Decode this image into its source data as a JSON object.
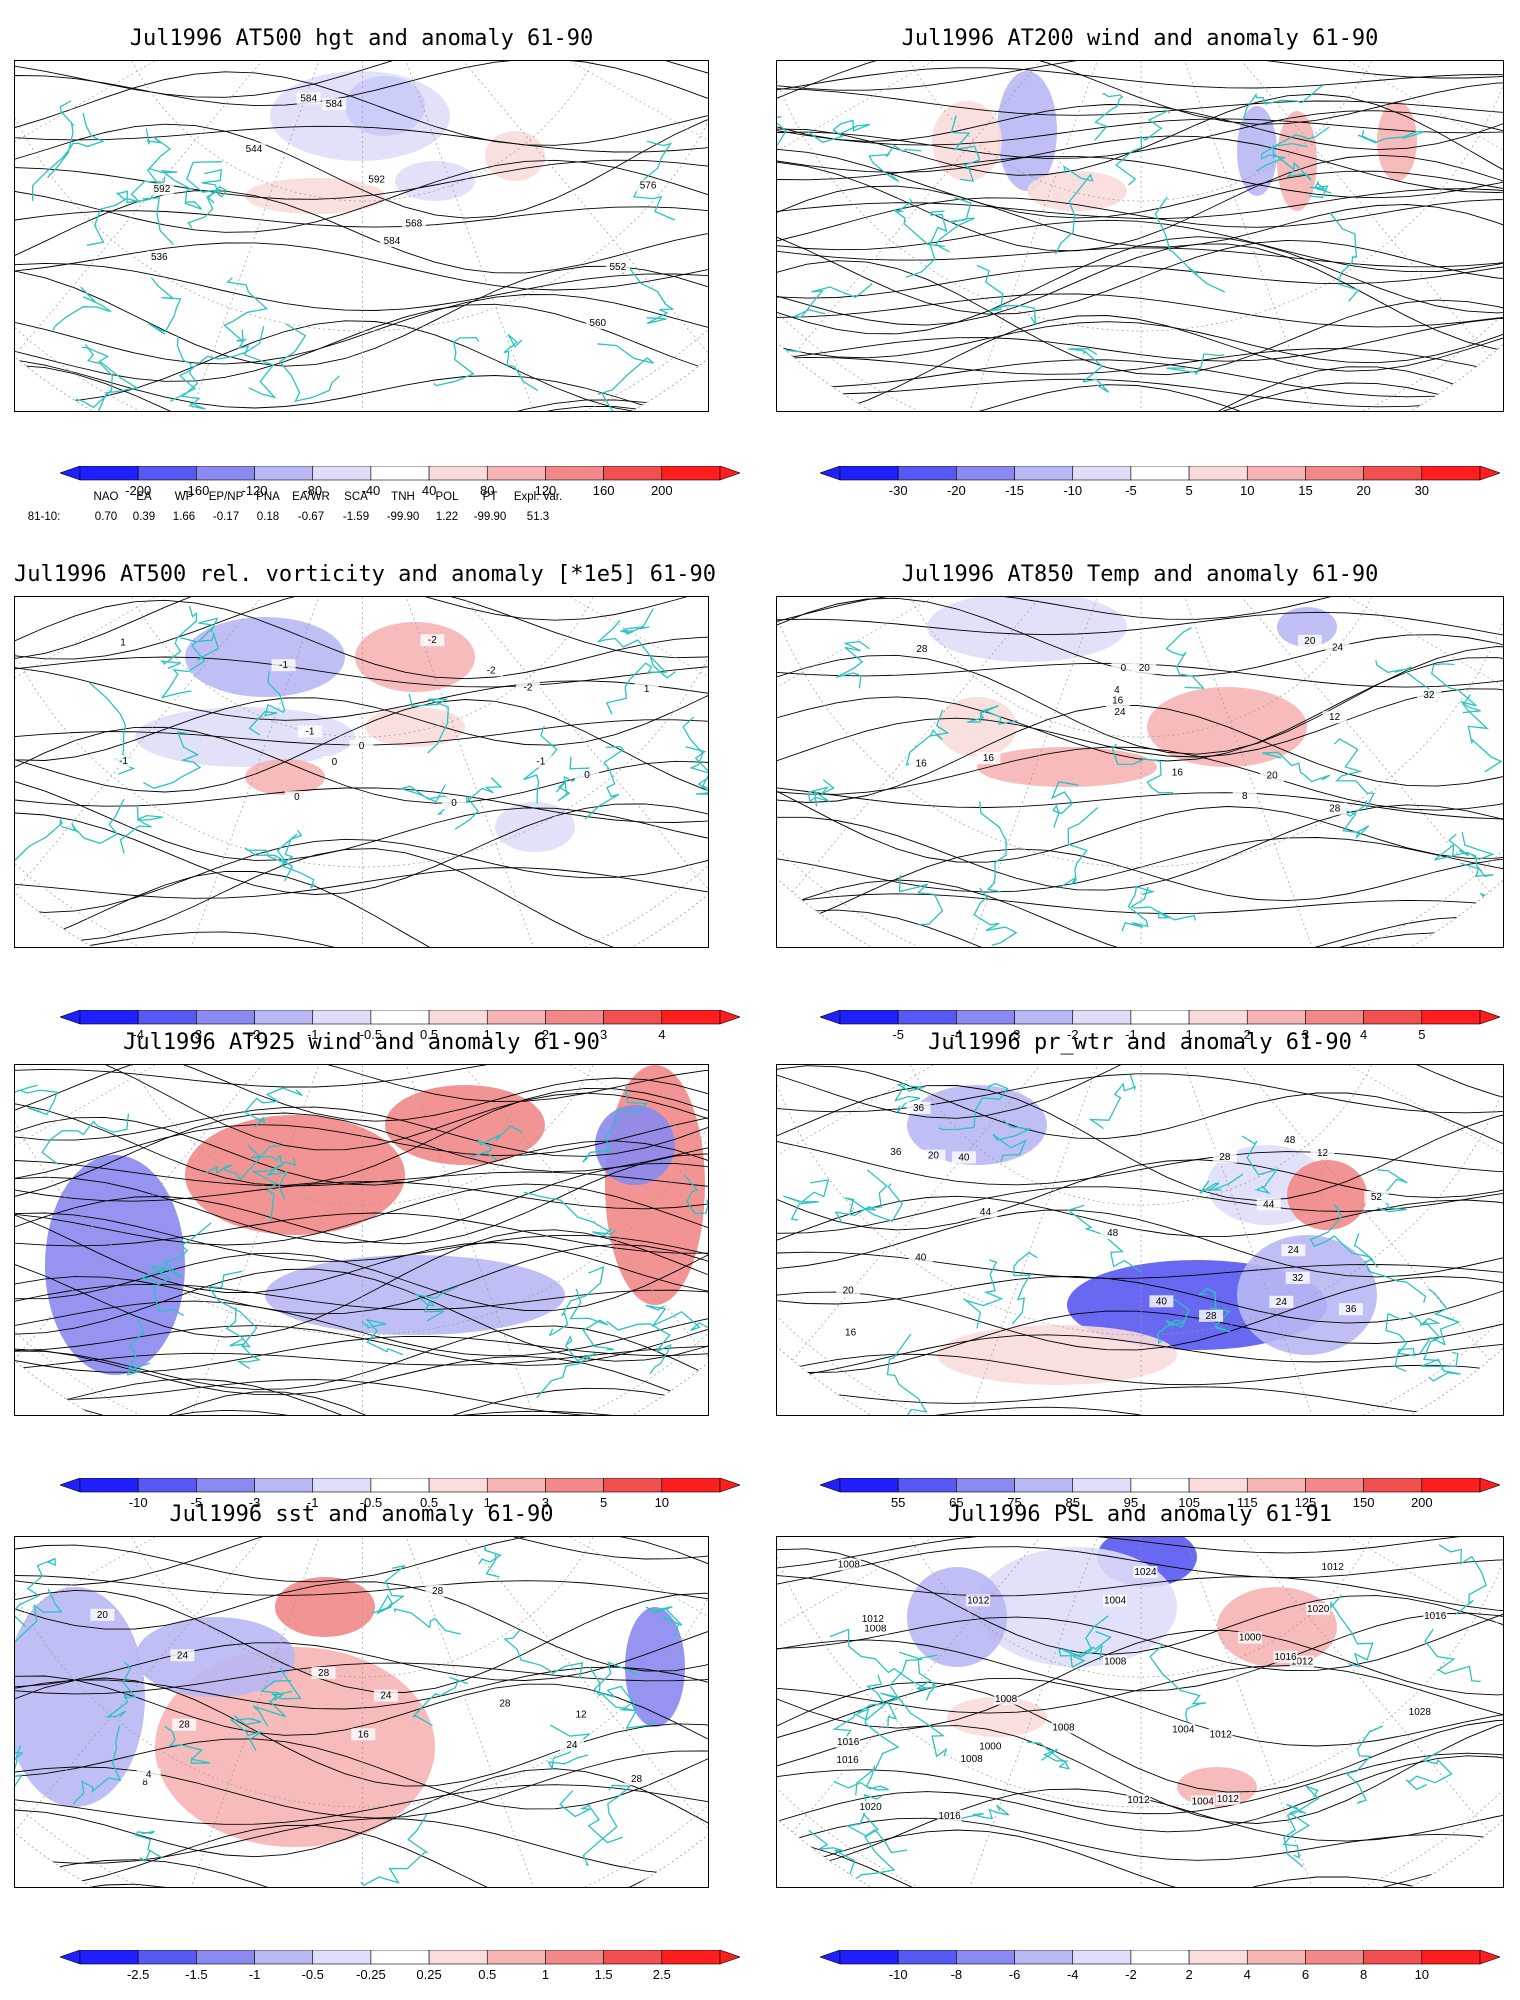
{
  "panels": [
    {
      "id": "p1",
      "title": "Jul1996 AT500 hgt and anomaly 61-90",
      "field": "contour+shading",
      "colorbar": [
        "-200",
        "-160",
        "-120",
        "-80",
        "-40",
        "40",
        "80",
        "120",
        "160",
        "200"
      ],
      "contour_labels": [
        "536",
        "544",
        "552",
        "560",
        "568",
        "576",
        "584",
        "592",
        "592",
        "584",
        "584"
      ]
    },
    {
      "id": "p2",
      "title": "Jul1996 AT200 wind and anomaly 61-90",
      "field": "streamlines+shading",
      "colorbar": [
        "-30",
        "-20",
        "-15",
        "-10",
        "-5",
        "5",
        "10",
        "15",
        "20",
        "30"
      ],
      "contour_labels": []
    },
    {
      "id": "p3",
      "title": "Jul1996 AT500 rel. vorticity and anomaly [*1e5] 61-90",
      "field": "contour+shading",
      "colorbar": [
        "-4",
        "-3",
        "-2",
        "-1",
        "-0.5",
        "0.5",
        "1",
        "2",
        "3",
        "4"
      ],
      "contour_labels": [
        "0",
        "-1",
        "-2",
        "1",
        "-1",
        "0",
        "1",
        "-2",
        "-1",
        "0",
        "-1",
        "0",
        "-2",
        "0"
      ]
    },
    {
      "id": "p4",
      "title": "Jul1996 AT850 Temp and anomaly 61-90",
      "field": "contour+shading",
      "colorbar": [
        "-5",
        "-4",
        "-3",
        "-2",
        "-1",
        "1",
        "2",
        "3",
        "4",
        "5"
      ],
      "contour_labels": [
        "20",
        "0",
        "4",
        "8",
        "12",
        "16",
        "20",
        "24",
        "28",
        "32",
        "28",
        "24",
        "20",
        "16",
        "16",
        "16"
      ]
    },
    {
      "id": "p5",
      "title": "Jul1996 AT925 wind and anomaly 61-90",
      "field": "streamlines+shading",
      "colorbar": [
        "-10",
        "-5",
        "-3",
        "-1",
        "-0.5",
        "0.5",
        "1",
        "3",
        "5",
        "10"
      ],
      "contour_labels": []
    },
    {
      "id": "p6",
      "title": "Jul1996 pr_wtr and anomaly 61-90",
      "field": "contour+shading",
      "colorbar": [
        "55",
        "65",
        "75",
        "85",
        "95",
        "105",
        "115",
        "125",
        "150",
        "200"
      ],
      "contour_labels": [
        "48",
        "44",
        "40",
        "36",
        "28",
        "24",
        "20",
        "16",
        "12",
        "20",
        "24",
        "28",
        "32",
        "36",
        "40",
        "44",
        "48",
        "52",
        "40",
        "36"
      ]
    },
    {
      "id": "p7",
      "title": "Jul1996 sst and anomaly 61-90",
      "field": "contour+shading",
      "colorbar": [
        "-2.5",
        "-1.5",
        "-1",
        "-0.5",
        "-0.25",
        "0.25",
        "0.5",
        "1",
        "1.5",
        "2.5"
      ],
      "contour_labels": [
        "24",
        "28",
        "28",
        "28",
        "20",
        "16",
        "12",
        "8",
        "4",
        "24",
        "24",
        "28",
        "28"
      ]
    },
    {
      "id": "p8",
      "title": "Jul1996 PSL and anomaly 61-91",
      "field": "contour+shading",
      "colorbar": [
        "-10",
        "-8",
        "-6",
        "-4",
        "-2",
        "2",
        "4",
        "6",
        "8",
        "10"
      ],
      "contour_labels": [
        "1016",
        "1016",
        "1012",
        "1008",
        "1004",
        "1000",
        "1004",
        "1008",
        "1008",
        "1008",
        "1012",
        "1012",
        "1016",
        "1020",
        "1024",
        "1028",
        "1020",
        "1016",
        "1012",
        "1016",
        "1012",
        "1008",
        "1004",
        "1000",
        "1012",
        "1008",
        "1012"
      ]
    }
  ],
  "teleconnections": {
    "headers": [
      "NAO",
      "EA",
      "WP",
      "EP/NP",
      "PNA",
      "EA/WR",
      "SCA",
      "TNH",
      "POL",
      "PT",
      "Expl. Var."
    ],
    "row_label": "81-10:",
    "values": [
      "0.70",
      "0.39",
      "1.66",
      "-0.17",
      "0.18",
      "-0.67",
      "-1.59",
      "-99.90",
      "1.22",
      "-99.90",
      "51.3"
    ]
  },
  "colors": {
    "blues": [
      "#2020ff",
      "#5858f2",
      "#8a8af0",
      "#b8b8f4",
      "#dedefa"
    ],
    "reds": [
      "#fadcdc",
      "#f6b4b4",
      "#f28888",
      "#f05050",
      "#ff1e1e"
    ],
    "coast": "#29c3c3"
  }
}
